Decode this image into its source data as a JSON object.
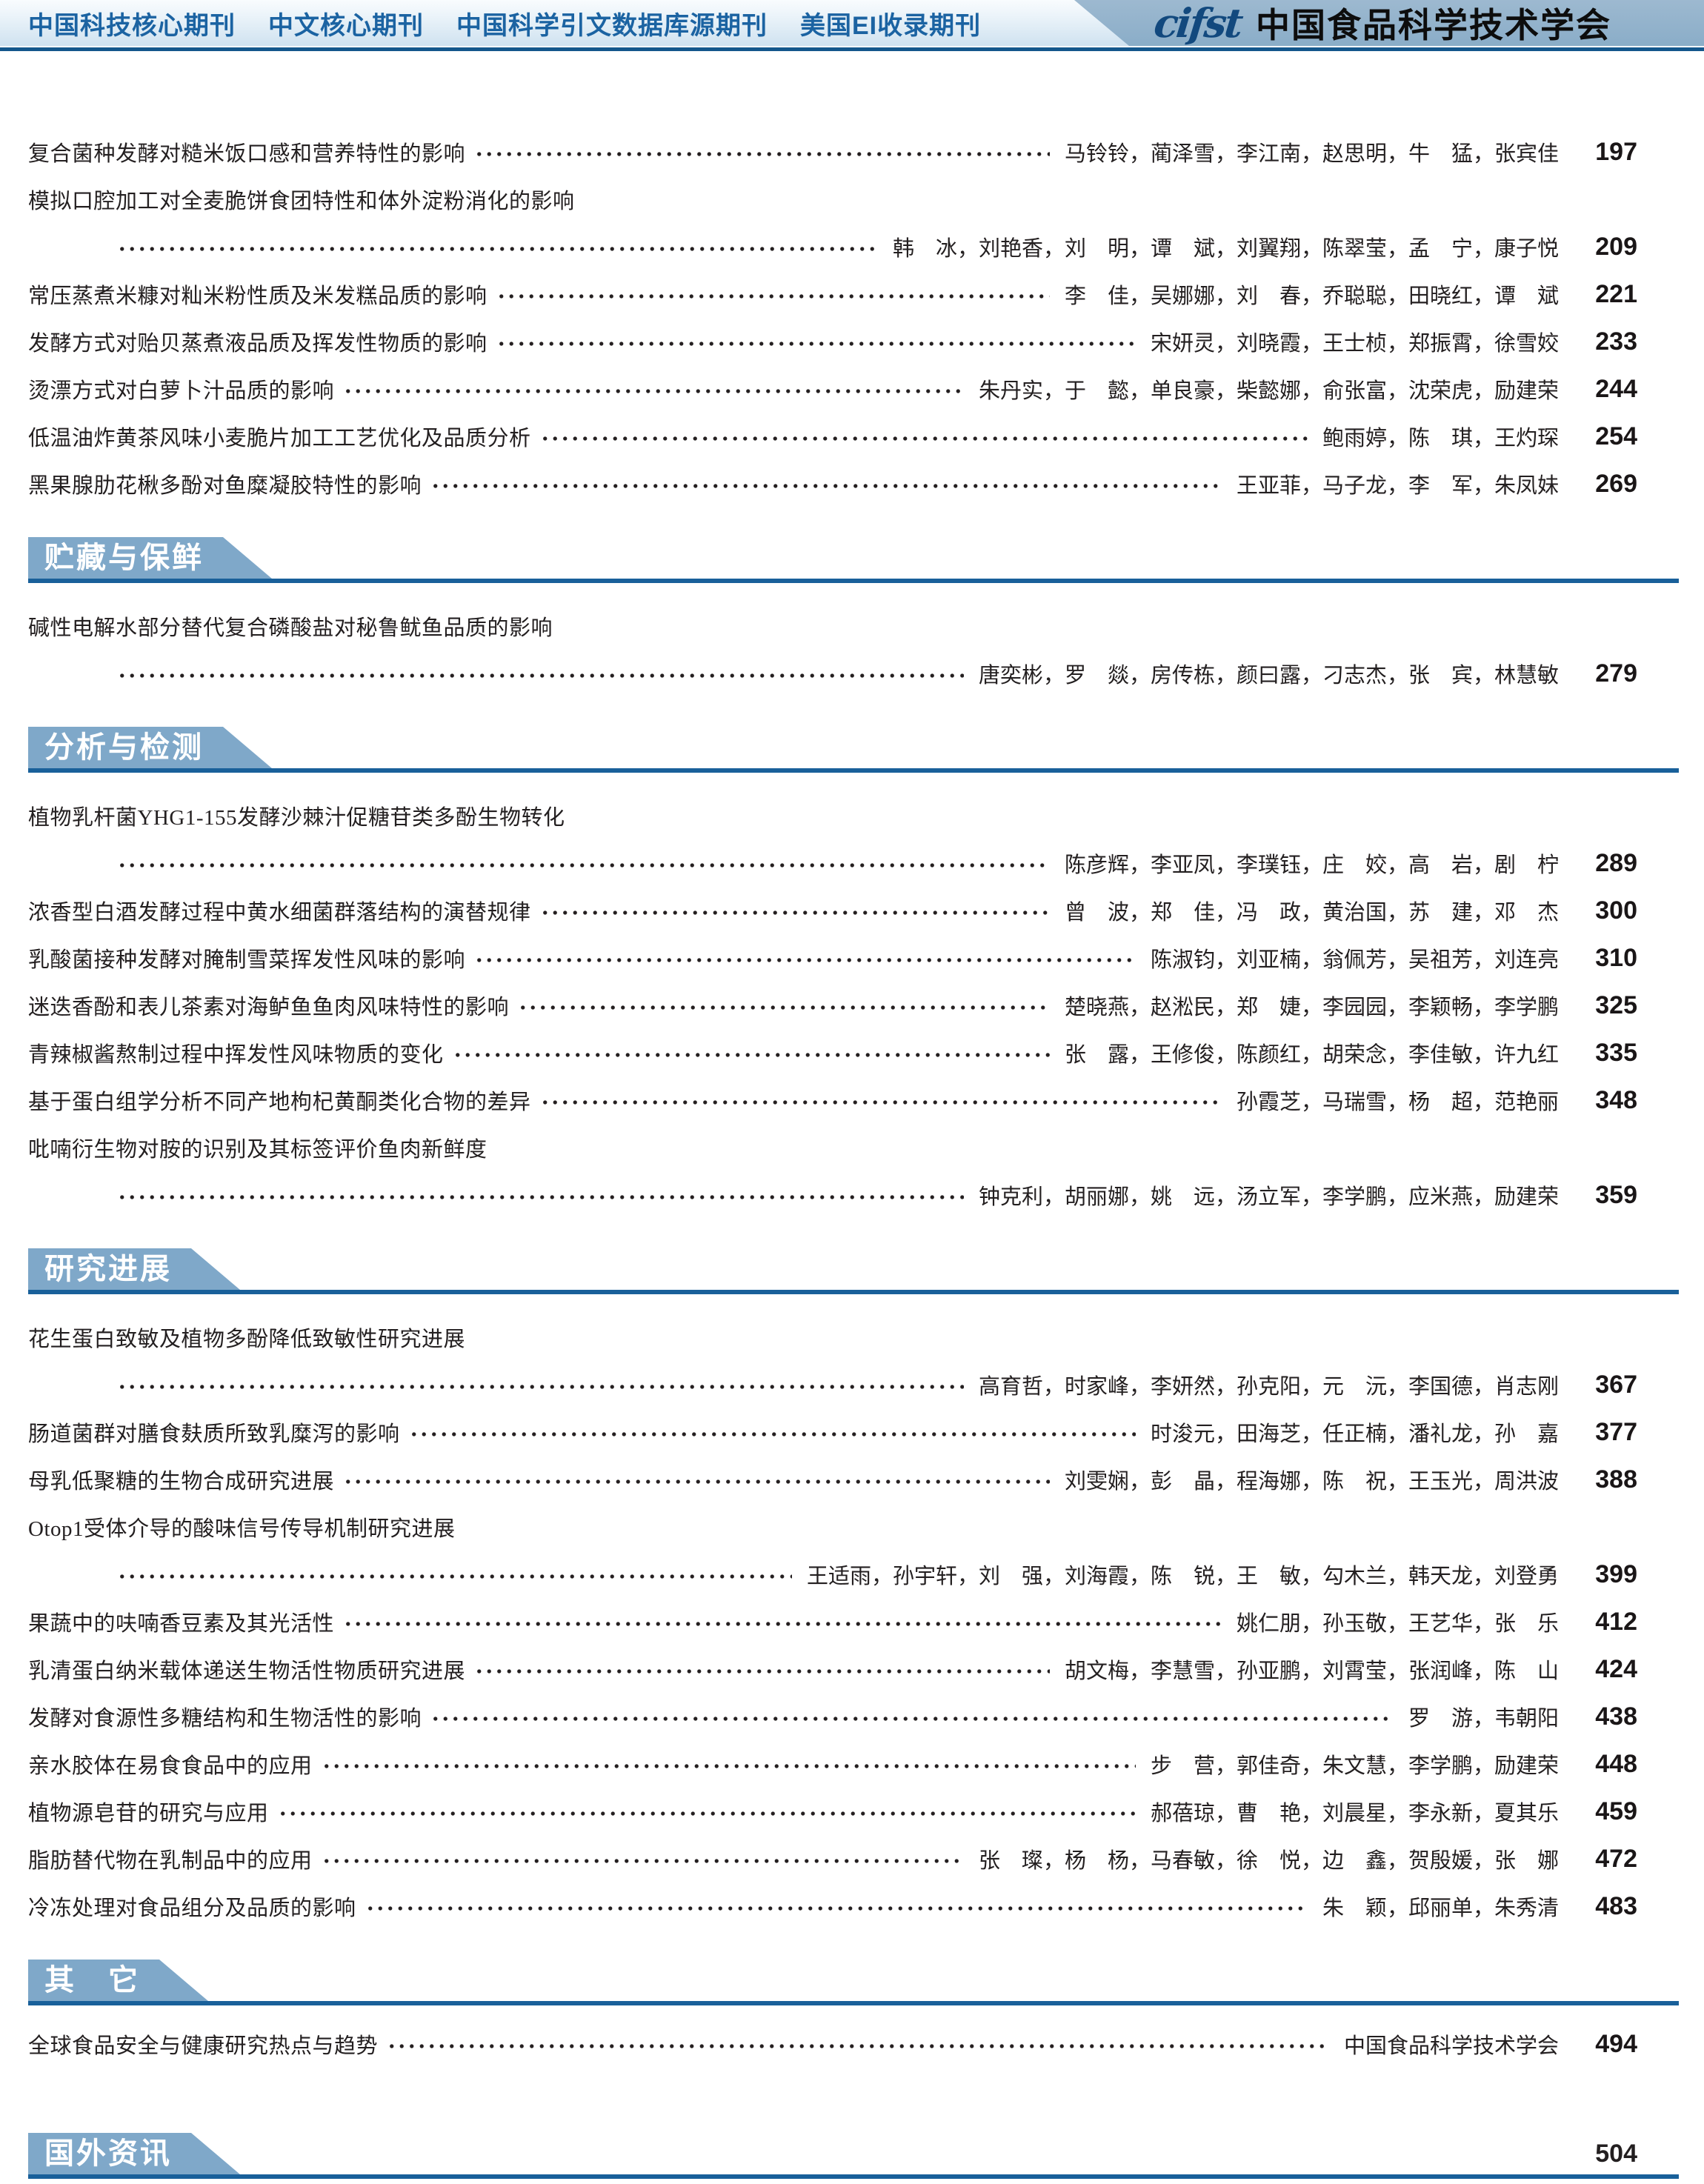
{
  "header": {
    "badges": [
      "中国科技核心期刊",
      "中文核心期刊",
      "中国科学引文数据库源期刊",
      "美国EI收录期刊"
    ],
    "logo_text": "cifst",
    "org_name": "中国食品科学技术学会"
  },
  "sections": [
    {
      "title": "",
      "entries": [
        {
          "title": "复合菌种发酵对糙米饭口感和营养特性的影响",
          "authors": "马铃铃，蔺泽雪，李江南，赵思明，牛　猛，张宾佳",
          "page": "197",
          "two_line": false
        },
        {
          "title": "模拟口腔加工对全麦脆饼食团特性和体外淀粉消化的影响",
          "authors": "韩　冰，刘艳香，刘　明，谭　斌，刘翼翔，陈翠莹，孟　宁，康子悦",
          "page": "209",
          "two_line": true
        },
        {
          "title": "常压蒸煮米糠对籼米粉性质及米发糕品质的影响",
          "authors": "李　佳，吴娜娜，刘　春，乔聪聪，田晓红，谭　斌",
          "page": "221",
          "two_line": false
        },
        {
          "title": "发酵方式对贻贝蒸煮液品质及挥发性物质的影响",
          "authors": "宋妍灵，刘晓霞，王士桢，郑振霄，徐雪姣",
          "page": "233",
          "two_line": false
        },
        {
          "title": "烫漂方式对白萝卜汁品质的影响",
          "authors": "朱丹实，于　懿，单良豪，柴懿娜，俞张富，沈荣虎，励建荣",
          "page": "244",
          "two_line": false
        },
        {
          "title": "低温油炸黄茶风味小麦脆片加工工艺优化及品质分析",
          "authors": "鲍雨婷，陈　琪，王灼琛",
          "page": "254",
          "two_line": false
        },
        {
          "title": "黑果腺肋花楸多酚对鱼糜凝胶特性的影响",
          "authors": "王亚菲，马子龙，李　军，朱凤妹",
          "page": "269",
          "two_line": false
        }
      ]
    },
    {
      "title": "贮藏与保鲜",
      "entries": [
        {
          "title": "碱性电解水部分替代复合磷酸盐对秘鲁鱿鱼品质的影响",
          "authors": "唐奕彬，罗　燚，房传栋，颜曰露，刁志杰，张　宾，林慧敏",
          "page": "279",
          "two_line": true
        }
      ]
    },
    {
      "title": "分析与检测",
      "entries": [
        {
          "title": "植物乳杆菌YHG1-155发酵沙棘汁促糖苷类多酚生物转化",
          "authors": "陈彦辉，李亚凤，李璞钰，庄　姣，高　岩，剧　柠",
          "page": "289",
          "two_line": true
        },
        {
          "title": "浓香型白酒发酵过程中黄水细菌群落结构的演替规律",
          "authors": "曾　波，郑　佳，冯　政，黄治国，苏　建，邓　杰",
          "page": "300",
          "two_line": false
        },
        {
          "title": "乳酸菌接种发酵对腌制雪菜挥发性风味的影响",
          "authors": "陈淑钧，刘亚楠，翁佩芳，吴祖芳，刘连亮",
          "page": "310",
          "two_line": false
        },
        {
          "title": "迷迭香酚和表儿茶素对海鲈鱼鱼肉风味特性的影响",
          "authors": "楚晓燕，赵淞民，郑　婕，李园园，李颖畅，李学鹏",
          "page": "325",
          "two_line": false
        },
        {
          "title": "青辣椒酱熬制过程中挥发性风味物质的变化",
          "authors": "张　露，王修俊，陈颜红，胡荣念，李佳敏，许九红",
          "page": "335",
          "two_line": false
        },
        {
          "title": "基于蛋白组学分析不同产地枸杞黄酮类化合物的差异",
          "authors": "孙霞芝，马瑞雪，杨　超，范艳丽",
          "page": "348",
          "two_line": false
        },
        {
          "title": "吡喃衍生物对胺的识别及其标签评价鱼肉新鲜度",
          "authors": "钟克利，胡丽娜，姚　远，汤立军，李学鹏，应米燕，励建荣",
          "page": "359",
          "two_line": true
        }
      ]
    },
    {
      "title": "研究进展",
      "entries": [
        {
          "title": "花生蛋白致敏及植物多酚降低致敏性研究进展",
          "authors": "高育哲，时家峰，李妍然，孙克阳，元　沅，李国德，肖志刚",
          "page": "367",
          "two_line": true
        },
        {
          "title": "肠道菌群对膳食麸质所致乳糜泻的影响",
          "authors": "时浚元，田海芝，任正楠，潘礼龙，孙　嘉",
          "page": "377",
          "two_line": false
        },
        {
          "title": "母乳低聚糖的生物合成研究进展",
          "authors": "刘雯娴，彭　晶，程海娜，陈　祝，王玉光，周洪波",
          "page": "388",
          "two_line": false
        },
        {
          "title": "Otop1受体介导的酸味信号传导机制研究进展",
          "authors": "王适雨，孙宇轩，刘　强，刘海霞，陈　锐，王　敏，勾木兰，韩天龙，刘登勇",
          "page": "399",
          "two_line": true
        },
        {
          "title": "果蔬中的呋喃香豆素及其光活性",
          "authors": "姚仁朋，孙玉敬，王艺华，张　乐",
          "page": "412",
          "two_line": false
        },
        {
          "title": "乳清蛋白纳米载体递送生物活性物质研究进展",
          "authors": "胡文梅，李慧雪，孙亚鹏，刘霄莹，张润峰，陈　山",
          "page": "424",
          "two_line": false
        },
        {
          "title": "发酵对食源性多糖结构和生物活性的影响",
          "authors": "罗　游，韦朝阳",
          "page": "438",
          "two_line": false
        },
        {
          "title": "亲水胶体在易食食品中的应用",
          "authors": "步　营，郭佳奇，朱文慧，李学鹏，励建荣",
          "page": "448",
          "two_line": false
        },
        {
          "title": "植物源皂苷的研究与应用",
          "authors": "郝蓓琼，曹　艳，刘晨星，李永新，夏其乐",
          "page": "459",
          "two_line": false
        },
        {
          "title": "脂肪替代物在乳制品中的应用",
          "authors": "张　璨，杨　杨，马春敏，徐　悦，边　鑫，贺殷媛，张　娜",
          "page": "472",
          "two_line": false
        },
        {
          "title": "冷冻处理对食品组分及品质的影响",
          "authors": "朱　颖，邱丽单，朱秀清",
          "page": "483",
          "two_line": false
        }
      ]
    },
    {
      "title": "其　它",
      "compact": true,
      "entries": [
        {
          "title": "全球食品安全与健康研究热点与趋势",
          "authors": "中国食品科学技术学会",
          "page": "494",
          "two_line": false
        }
      ]
    },
    {
      "title": "国外资讯",
      "page": "504",
      "entries": []
    }
  ]
}
